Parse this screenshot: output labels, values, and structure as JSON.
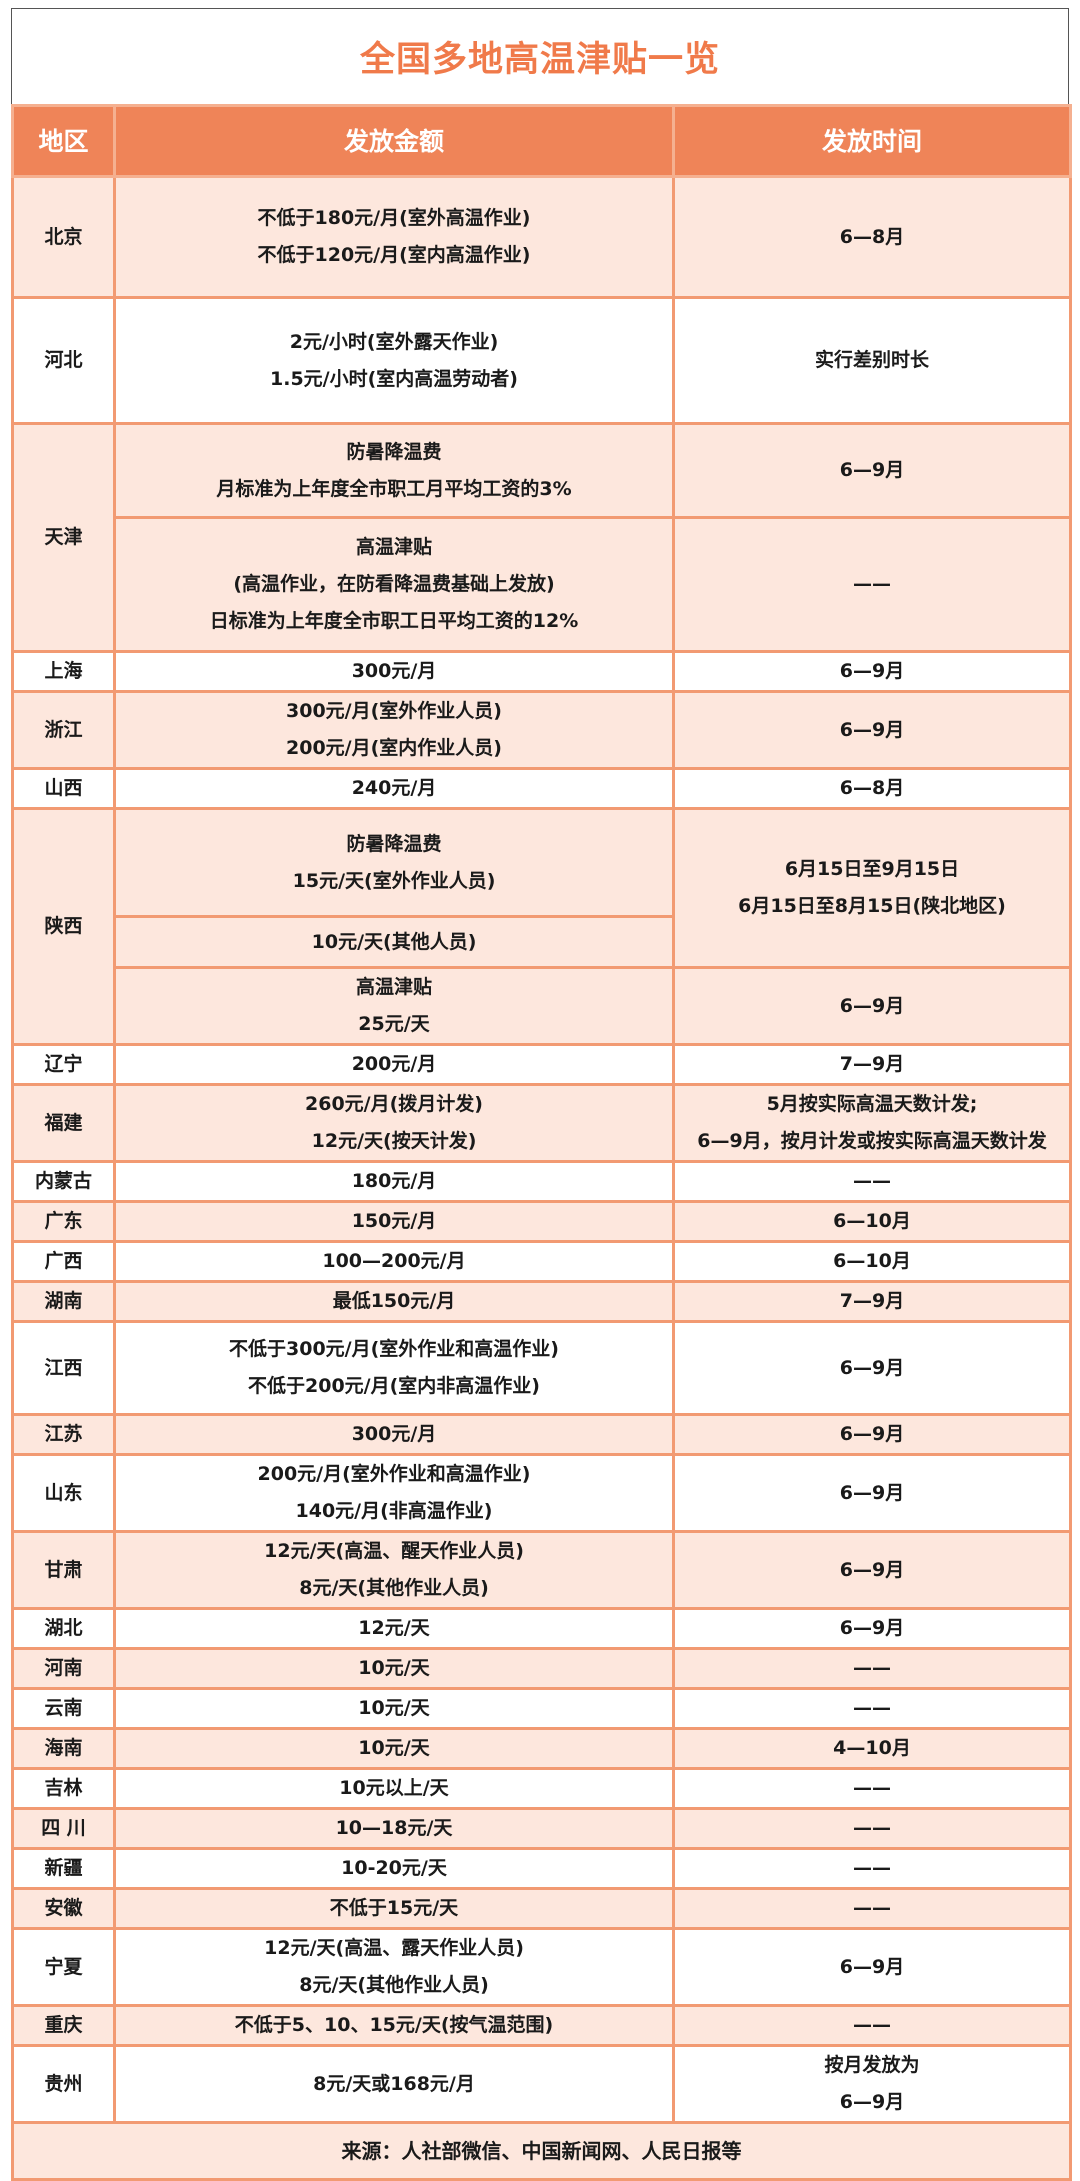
{
  "title": "全国多地高温津贴一览",
  "headers": {
    "region": "地区",
    "amount": "发放金额",
    "time": "发放时间"
  },
  "colors": {
    "accent": "#ef8458",
    "title": "#f07a4a",
    "row_alt": "#fde7dd",
    "border": "#f29a72"
  },
  "regions": [
    {
      "name": "北京",
      "rows": [
        {
          "amount": [
            "不低于180元/月(室外高温作业)",
            "不低于120元/月(室内高温作业)"
          ],
          "time": [
            "6—8月"
          ]
        }
      ]
    },
    {
      "name": "河北",
      "rows": [
        {
          "amount": [
            "2元/小时(室外露天作业)",
            "1.5元/小时(室内高温劳动者)"
          ],
          "time": [
            "实行差别时长"
          ]
        }
      ]
    },
    {
      "name": "天津",
      "rows": [
        {
          "amount": [
            "防暑降温费",
            "月标准为上年度全市职工月平均工资的3%"
          ],
          "time": [
            "6—9月"
          ]
        },
        {
          "amount": [
            "高温津贴",
            "(高温作业，在防看降温费基础上发放)",
            "日标准为上年度全市职工日平均工资的12%"
          ],
          "time": [
            "——"
          ]
        }
      ]
    },
    {
      "name": "上海",
      "rows": [
        {
          "amount": [
            "300元/月"
          ],
          "time": [
            "6—9月"
          ]
        }
      ]
    },
    {
      "name": "浙江",
      "rows": [
        {
          "amount": [
            "300元/月(室外作业人员)",
            "200元/月(室内作业人员)"
          ],
          "time": [
            "6—9月"
          ]
        }
      ]
    },
    {
      "name": "山西",
      "rows": [
        {
          "amount": [
            "240元/月"
          ],
          "time": [
            "6—8月"
          ]
        }
      ]
    },
    {
      "name": "陕西",
      "rows": [
        {
          "amount": [
            "防暑降温费",
            "15元/天(室外作业人员)"
          ],
          "time": [
            "6月15日至9月15日",
            "6月15日至8月15日(陕北地区)"
          ],
          "time_span": 2
        },
        {
          "amount": [
            "10元/天(其他人员)"
          ]
        },
        {
          "amount": [
            "高温津贴",
            "25元/天"
          ],
          "time": [
            "6—9月"
          ]
        }
      ]
    },
    {
      "name": "辽宁",
      "rows": [
        {
          "amount": [
            "200元/月"
          ],
          "time": [
            "7—9月"
          ]
        }
      ]
    },
    {
      "name": "福建",
      "rows": [
        {
          "amount": [
            "260元/月(拨月计发)",
            "12元/天(按天计发)"
          ],
          "time": [
            "5月按实际高温天数计发;",
            "6—9月，按月计发或按实际高温天数计发"
          ]
        }
      ]
    },
    {
      "name": "内蒙古",
      "rows": [
        {
          "amount": [
            "180元/月"
          ],
          "time": [
            "——"
          ]
        }
      ]
    },
    {
      "name": "广东",
      "rows": [
        {
          "amount": [
            "150元/月"
          ],
          "time": [
            "6—10月"
          ]
        }
      ]
    },
    {
      "name": "广西",
      "rows": [
        {
          "amount": [
            "100—200元/月"
          ],
          "time": [
            "6—10月"
          ]
        }
      ]
    },
    {
      "name": "湖南",
      "rows": [
        {
          "amount": [
            "最低150元/月"
          ],
          "time": [
            "7—9月"
          ]
        }
      ]
    },
    {
      "name": "江西",
      "rows": [
        {
          "amount": [
            "不低于300元/月(室外作业和高温作业)",
            "不低于200元/月(室内非高温作业)"
          ],
          "time": [
            "6—9月"
          ]
        }
      ]
    },
    {
      "name": "江苏",
      "rows": [
        {
          "amount": [
            "300元/月"
          ],
          "time": [
            "6—9月"
          ]
        }
      ]
    },
    {
      "name": "山东",
      "rows": [
        {
          "amount": [
            "200元/月(室外作业和高温作业)",
            "140元/月(非高温作业)"
          ],
          "time": [
            "6—9月"
          ]
        }
      ]
    },
    {
      "name": "甘肃",
      "rows": [
        {
          "amount": [
            "12元/天(高温、醒天作业人员)",
            "8元/天(其他作业人员)"
          ],
          "time": [
            "6—9月"
          ]
        }
      ]
    },
    {
      "name": "湖北",
      "rows": [
        {
          "amount": [
            "12元/天"
          ],
          "time": [
            "6—9月"
          ]
        }
      ]
    },
    {
      "name": "河南",
      "rows": [
        {
          "amount": [
            "10元/天"
          ],
          "time": [
            "——"
          ]
        }
      ]
    },
    {
      "name": "云南",
      "rows": [
        {
          "amount": [
            "10元/天"
          ],
          "time": [
            "——"
          ]
        }
      ]
    },
    {
      "name": "海南",
      "rows": [
        {
          "amount": [
            "10元/天"
          ],
          "time": [
            "4—10月"
          ]
        }
      ]
    },
    {
      "name": "吉林",
      "rows": [
        {
          "amount": [
            "10元以上/天"
          ],
          "time": [
            "——"
          ]
        }
      ]
    },
    {
      "name": "四 川",
      "rows": [
        {
          "amount": [
            "10—18元/天"
          ],
          "time": [
            "——"
          ]
        }
      ]
    },
    {
      "name": "新疆",
      "rows": [
        {
          "amount": [
            "10-20元/天"
          ],
          "time": [
            "——"
          ]
        }
      ]
    },
    {
      "name": "安徽",
      "rows": [
        {
          "amount": [
            "不低于15元/天"
          ],
          "time": [
            "——"
          ]
        }
      ]
    },
    {
      "name": "宁夏",
      "rows": [
        {
          "amount": [
            "12元/天(高温、露天作业人员)",
            "8元/天(其他作业人员)"
          ],
          "time": [
            "6—9月"
          ]
        }
      ]
    },
    {
      "name": "重庆",
      "rows": [
        {
          "amount": [
            "不低于5、10、15元/天(按气温范围)"
          ],
          "time": [
            "——"
          ]
        }
      ]
    },
    {
      "name": "贵州",
      "rows": [
        {
          "amount": [
            "8元/天或168元/月"
          ],
          "time": [
            "按月发放为",
            "6—9月"
          ]
        }
      ]
    }
  ],
  "footer": "来源：人社部微信、中国新闻网、人民日报等"
}
